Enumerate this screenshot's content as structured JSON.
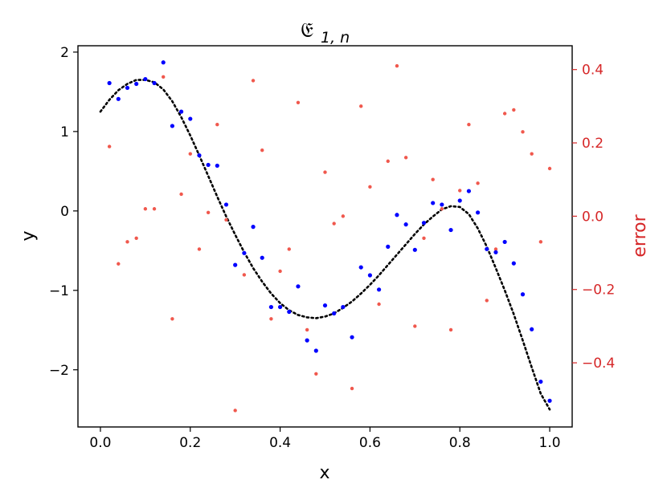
{
  "chart_data": {
    "type": "scatter",
    "title_main": "𝔈",
    "title_sub": "1, n",
    "xlabel": "x",
    "ylabel": "y",
    "y2label": "error",
    "xlim": [
      -0.05,
      1.05
    ],
    "ylim": [
      -2.72,
      2.08
    ],
    "y2lim": [
      -0.575,
      0.465
    ],
    "xticks": [
      0.0,
      0.2,
      0.4,
      0.6,
      0.8,
      1.0
    ],
    "xtick_labels": [
      "0.0",
      "0.2",
      "0.4",
      "0.6",
      "0.8",
      "1.0"
    ],
    "yticks": [
      -2,
      -1,
      0,
      1,
      2
    ],
    "ytick_labels": [
      "−2",
      "−1",
      "0",
      "1",
      "2"
    ],
    "y2ticks": [
      -0.4,
      -0.2,
      0.0,
      0.2,
      0.4
    ],
    "y2tick_labels": [
      "−0.4",
      "−0.2",
      "0.0",
      "0.2",
      "0.4"
    ],
    "colors": {
      "data": "#0000ff",
      "error": "#f0584d",
      "fit": "#000000",
      "right_axis": "#d62728"
    },
    "series": [
      {
        "kind": "dotted-line",
        "color": "#000000",
        "x": [
          0.0,
          0.02,
          0.04,
          0.06,
          0.08,
          0.1,
          0.12,
          0.14,
          0.16,
          0.18,
          0.2,
          0.22,
          0.24,
          0.26,
          0.28,
          0.3,
          0.32,
          0.34,
          0.36,
          0.38,
          0.4,
          0.42,
          0.44,
          0.46,
          0.48,
          0.5,
          0.52,
          0.54,
          0.56,
          0.58,
          0.6,
          0.62,
          0.64,
          0.66,
          0.68,
          0.7,
          0.72,
          0.74,
          0.76,
          0.78,
          0.8,
          0.82,
          0.84,
          0.86,
          0.88,
          0.9,
          0.92,
          0.94,
          0.96,
          0.98,
          1.0
        ],
        "y": [
          1.25,
          1.4,
          1.52,
          1.6,
          1.65,
          1.65,
          1.62,
          1.53,
          1.38,
          1.18,
          0.95,
          0.7,
          0.44,
          0.18,
          -0.07,
          -0.3,
          -0.52,
          -0.72,
          -0.89,
          -1.04,
          -1.16,
          -1.25,
          -1.31,
          -1.34,
          -1.35,
          -1.33,
          -1.29,
          -1.22,
          -1.14,
          -1.04,
          -0.93,
          -0.81,
          -0.68,
          -0.55,
          -0.42,
          -0.29,
          -0.17,
          -0.07,
          0.02,
          0.06,
          0.05,
          -0.04,
          -0.22,
          -0.45,
          -0.72,
          -1.0,
          -1.3,
          -1.63,
          -1.97,
          -2.3,
          -2.5
        ]
      },
      {
        "kind": "scatter",
        "color": "#0000ff",
        "x": [
          0.02,
          0.04,
          0.06,
          0.08,
          0.1,
          0.12,
          0.14,
          0.16,
          0.18,
          0.2,
          0.22,
          0.24,
          0.26,
          0.28,
          0.3,
          0.32,
          0.34,
          0.36,
          0.38,
          0.4,
          0.42,
          0.44,
          0.46,
          0.48,
          0.5,
          0.52,
          0.54,
          0.56,
          0.58,
          0.6,
          0.62,
          0.64,
          0.66,
          0.68,
          0.7,
          0.72,
          0.74,
          0.76,
          0.78,
          0.8,
          0.82,
          0.84,
          0.86,
          0.88,
          0.9,
          0.92,
          0.94,
          0.96,
          0.98,
          1.0
        ],
        "y": [
          1.61,
          1.41,
          1.55,
          1.6,
          1.66,
          1.61,
          1.87,
          1.07,
          1.25,
          1.16,
          0.7,
          0.58,
          0.57,
          0.08,
          -0.68,
          -0.53,
          -0.2,
          -0.59,
          -1.21,
          -1.21,
          -1.27,
          -0.95,
          -1.63,
          -1.76,
          -1.19,
          -1.29,
          -1.21,
          -1.59,
          -0.71,
          -0.81,
          -0.99,
          -0.45,
          -0.05,
          -0.17,
          -0.49,
          -0.15,
          0.1,
          0.08,
          -0.24,
          0.13,
          0.25,
          -0.02,
          -0.48,
          -0.52,
          -0.39,
          -0.66,
          -1.05,
          -1.49,
          -2.15,
          -2.39
        ]
      },
      {
        "kind": "scatter",
        "axis": "right",
        "color": "#f0584d",
        "x": [
          0.02,
          0.04,
          0.06,
          0.08,
          0.1,
          0.12,
          0.14,
          0.16,
          0.18,
          0.2,
          0.22,
          0.24,
          0.26,
          0.28,
          0.3,
          0.32,
          0.34,
          0.36,
          0.38,
          0.4,
          0.42,
          0.44,
          0.46,
          0.48,
          0.5,
          0.52,
          0.54,
          0.56,
          0.58,
          0.6,
          0.62,
          0.64,
          0.66,
          0.68,
          0.7,
          0.72,
          0.74,
          0.76,
          0.78,
          0.8,
          0.82,
          0.84,
          0.86,
          0.88,
          0.9,
          0.92,
          0.94,
          0.96,
          0.98,
          1.0
        ],
        "y": [
          0.19,
          -0.13,
          -0.07,
          -0.06,
          0.02,
          0.02,
          0.38,
          -0.28,
          0.06,
          0.17,
          -0.09,
          0.01,
          0.25,
          -0.01,
          -0.53,
          -0.16,
          0.37,
          0.18,
          -0.28,
          -0.15,
          -0.09,
          0.31,
          -0.31,
          -0.43,
          0.12,
          -0.02,
          0.0,
          -0.47,
          0.3,
          0.08,
          -0.24,
          0.15,
          0.41,
          0.16,
          -0.3,
          -0.06,
          0.1,
          0.02,
          -0.31,
          0.07,
          0.25,
          0.09,
          -0.23,
          -0.09,
          0.28,
          0.29,
          0.23,
          0.17,
          -0.07,
          0.13
        ]
      }
    ]
  }
}
